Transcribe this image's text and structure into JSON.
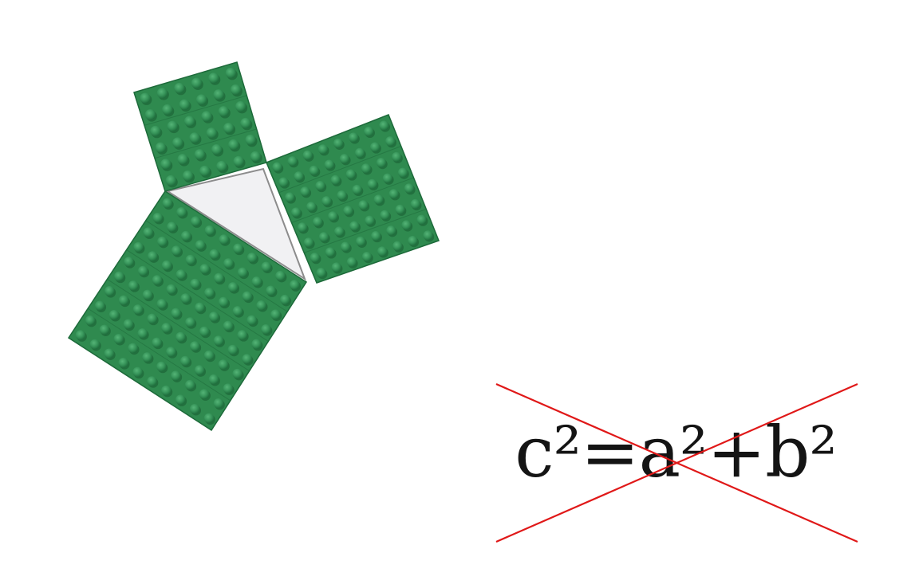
{
  "formula": {
    "text": "c²=a²+b²",
    "text_color": "#141414",
    "strike_color": "#e01818"
  },
  "illustration": {
    "subject": "lego-pythagoras-squares",
    "brick_color": "#2f8a4f",
    "stud_color": "#3a9a5c",
    "triangle_fill": "#f1f1f3",
    "small_square_studs": 6,
    "medium_square_studs": 8,
    "large_square_studs": 10
  }
}
